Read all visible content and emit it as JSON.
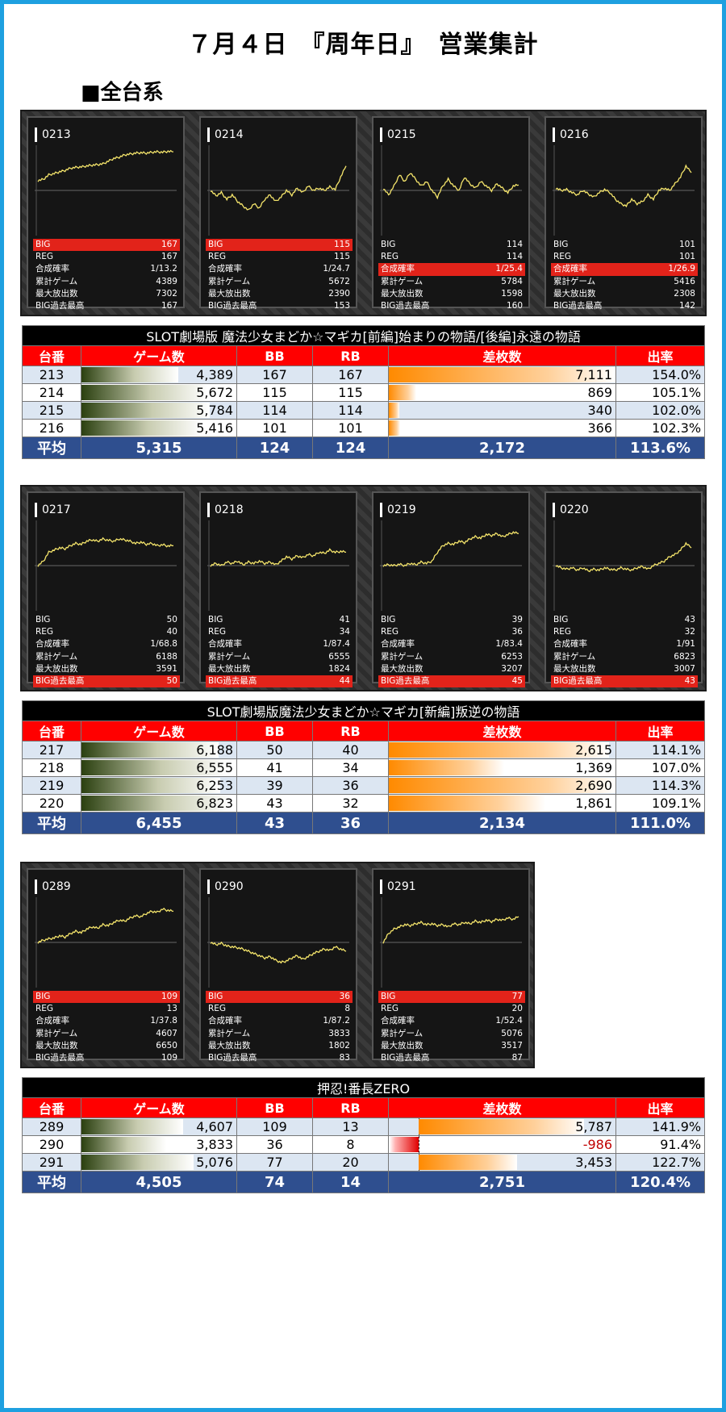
{
  "title": "７月４日　『周年日』　営業集計",
  "section": "■全台系",
  "colors": {
    "frame": "#1ea0e0",
    "header_red": "#ff0000",
    "avg_blue": "#2f4f8f",
    "line_yellow": "#f5e56b"
  },
  "stat_labels": [
    "BIG",
    "REG",
    "合成確率",
    "累計ゲーム",
    "最大放出数",
    "BIG過去最高"
  ],
  "groups": [
    {
      "name": "SLOT劇場版 魔法少女まどか☆マギカ[前編]始まりの物語/[後編]永遠の物語",
      "headers": [
        "台番",
        "ゲーム数",
        "BB",
        "RB",
        "差枚数",
        "出率"
      ],
      "machines": [
        {
          "id": "0213",
          "stats": [
            "167",
            "167",
            "1/13.2",
            "4389",
            "7302",
            "167"
          ],
          "hl": 0,
          "graph": [
            0.22,
            0.25,
            0.35,
            0.38,
            0.42,
            0.45,
            0.5,
            0.52,
            0.53,
            0.55,
            0.57,
            0.58,
            0.6,
            0.66,
            0.72,
            0.75,
            0.8,
            0.82,
            0.84,
            0.85,
            0.84,
            0.86,
            0.87,
            0.86,
            0.88,
            0.87
          ]
        },
        {
          "id": "0214",
          "stats": [
            "115",
            "115",
            "1/24.7",
            "5672",
            "2390",
            "153"
          ],
          "hl": 0,
          "graph": [
            0.0,
            -0.12,
            -0.05,
            -0.2,
            -0.1,
            -0.25,
            -0.35,
            -0.45,
            -0.3,
            -0.4,
            -0.2,
            -0.1,
            -0.25,
            -0.15,
            0.0,
            -0.1,
            0.05,
            -0.05,
            0.1,
            0.0,
            0.05,
            0.0,
            0.08,
            0.02,
            0.3,
            0.55
          ]
        },
        {
          "id": "0215",
          "stats": [
            "114",
            "114",
            "1/25.4",
            "5784",
            "1598",
            "160"
          ],
          "hl": 2,
          "graph": [
            0.05,
            -0.1,
            0.1,
            0.35,
            0.2,
            0.4,
            0.25,
            0.1,
            0.2,
            0.0,
            -0.15,
            0.1,
            0.25,
            0.1,
            0.0,
            0.3,
            0.15,
            0.05,
            0.2,
            0.1,
            0.0,
            0.15,
            0.05,
            -0.05,
            0.1,
            0.12
          ]
        },
        {
          "id": "0216",
          "stats": [
            "101",
            "101",
            "1/26.9",
            "5416",
            "2308",
            "142"
          ],
          "hl": 2,
          "graph": [
            0.05,
            0.0,
            0.02,
            -0.05,
            -0.1,
            0.0,
            -0.08,
            -0.15,
            -0.05,
            0.02,
            -0.05,
            -0.2,
            -0.3,
            -0.35,
            -0.2,
            -0.3,
            -0.25,
            -0.1,
            -0.2,
            0.0,
            0.05,
            0.0,
            0.15,
            0.3,
            0.55,
            0.4
          ]
        }
      ],
      "rows": [
        {
          "no": "213",
          "games": "4,389",
          "bb": "167",
          "rb": "167",
          "diff": "7,111",
          "rate": "154.0%",
          "g": 4389,
          "d": 7111
        },
        {
          "no": "214",
          "games": "5,672",
          "bb": "115",
          "rb": "115",
          "diff": "869",
          "rate": "105.1%",
          "g": 5672,
          "d": 869
        },
        {
          "no": "215",
          "games": "5,784",
          "bb": "114",
          "rb": "114",
          "diff": "340",
          "rate": "102.0%",
          "g": 5784,
          "d": 340
        },
        {
          "no": "216",
          "games": "5,416",
          "bb": "101",
          "rb": "101",
          "diff": "366",
          "rate": "102.3%",
          "g": 5416,
          "d": 366
        }
      ],
      "avg": {
        "label": "平均",
        "games": "5,315",
        "bb": "124",
        "rb": "124",
        "diff": "2,172",
        "rate": "113.6%"
      }
    },
    {
      "name": "SLOT劇場版魔法少女まどか☆マギカ[新編]叛逆の物語",
      "headers": [
        "台番",
        "ゲーム数",
        "BB",
        "RB",
        "差枚数",
        "出率"
      ],
      "machines": [
        {
          "id": "0217",
          "stats": [
            "50",
            "40",
            "1/68.8",
            "6188",
            "3591",
            "50"
          ],
          "hl": 5,
          "graph": [
            0.0,
            0.1,
            0.3,
            0.35,
            0.4,
            0.38,
            0.45,
            0.5,
            0.48,
            0.55,
            0.58,
            0.55,
            0.6,
            0.57,
            0.55,
            0.6,
            0.58,
            0.55,
            0.5,
            0.53,
            0.48,
            0.5,
            0.45,
            0.47,
            0.44,
            0.45
          ]
        },
        {
          "id": "0218",
          "stats": [
            "41",
            "34",
            "1/87.4",
            "6555",
            "1824",
            "44"
          ],
          "hl": 5,
          "graph": [
            0.0,
            0.05,
            0.0,
            0.08,
            0.05,
            0.1,
            0.02,
            0.08,
            0.05,
            0.1,
            0.05,
            0.08,
            0.02,
            0.1,
            0.2,
            0.15,
            0.22,
            0.18,
            0.25,
            0.22,
            0.3,
            0.28,
            0.35,
            0.3,
            0.32,
            0.3
          ]
        },
        {
          "id": "0219",
          "stats": [
            "39",
            "36",
            "1/83.4",
            "6253",
            "3207",
            "45"
          ],
          "hl": 5,
          "graph": [
            0.0,
            0.02,
            0.0,
            0.03,
            0.0,
            0.05,
            0.02,
            0.08,
            0.05,
            0.1,
            0.3,
            0.45,
            0.5,
            0.48,
            0.55,
            0.52,
            0.6,
            0.65,
            0.62,
            0.7,
            0.68,
            0.72,
            0.65,
            0.7,
            0.75,
            0.72
          ]
        },
        {
          "id": "0220",
          "stats": [
            "43",
            "32",
            "1/91",
            "6823",
            "3007",
            "43"
          ],
          "hl": 5,
          "graph": [
            0.0,
            -0.05,
            -0.08,
            -0.05,
            -0.1,
            -0.05,
            -0.12,
            -0.08,
            -0.1,
            -0.05,
            -0.08,
            -0.1,
            -0.05,
            -0.08,
            -0.1,
            -0.05,
            -0.02,
            -0.08,
            0.0,
            0.05,
            0.1,
            0.2,
            0.25,
            0.35,
            0.5,
            0.4
          ]
        }
      ],
      "rows": [
        {
          "no": "217",
          "games": "6,188",
          "bb": "50",
          "rb": "40",
          "diff": "2,615",
          "rate": "114.1%",
          "g": 6188,
          "d": 2615
        },
        {
          "no": "218",
          "games": "6,555",
          "bb": "41",
          "rb": "34",
          "diff": "1,369",
          "rate": "107.0%",
          "g": 6555,
          "d": 1369
        },
        {
          "no": "219",
          "games": "6,253",
          "bb": "39",
          "rb": "36",
          "diff": "2,690",
          "rate": "114.3%",
          "g": 6253,
          "d": 2690
        },
        {
          "no": "220",
          "games": "6,823",
          "bb": "43",
          "rb": "32",
          "diff": "1,861",
          "rate": "109.1%",
          "g": 6823,
          "d": 1861
        }
      ],
      "avg": {
        "label": "平均",
        "games": "6,455",
        "bb": "43",
        "rb": "36",
        "diff": "2,134",
        "rate": "111.0%"
      }
    },
    {
      "name": "押忍!番長ZERO",
      "headers": [
        "台番",
        "ゲーム数",
        "BB",
        "RB",
        "差枚数",
        "出率"
      ],
      "machines": [
        {
          "id": "0289",
          "stats": [
            "109",
            "13",
            "1/37.8",
            "4607",
            "6650",
            "109"
          ],
          "hl": 0,
          "graph": [
            0.0,
            0.05,
            0.08,
            0.1,
            0.15,
            0.12,
            0.2,
            0.25,
            0.22,
            0.3,
            0.35,
            0.32,
            0.4,
            0.38,
            0.45,
            0.5,
            0.48,
            0.55,
            0.6,
            0.58,
            0.65,
            0.7,
            0.68,
            0.75,
            0.72,
            0.7
          ]
        },
        {
          "id": "0290",
          "stats": [
            "36",
            "8",
            "1/87.2",
            "3833",
            "1802",
            "83"
          ],
          "hl": 0,
          "graph": [
            0.0,
            -0.05,
            -0.02,
            -0.08,
            -0.1,
            -0.12,
            -0.15,
            -0.2,
            -0.25,
            -0.3,
            -0.35,
            -0.32,
            -0.4,
            -0.45,
            -0.42,
            -0.35,
            -0.3,
            -0.38,
            -0.32,
            -0.25,
            -0.2,
            -0.15,
            -0.18,
            -0.1,
            -0.15,
            -0.2
          ]
        },
        {
          "id": "0291",
          "stats": [
            "77",
            "20",
            "1/52.4",
            "5076",
            "3517",
            "87"
          ],
          "hl": 0,
          "graph": [
            0.0,
            0.2,
            0.3,
            0.35,
            0.4,
            0.38,
            0.42,
            0.45,
            0.4,
            0.42,
            0.38,
            0.4,
            0.35,
            0.42,
            0.4,
            0.45,
            0.42,
            0.48,
            0.45,
            0.5,
            0.47,
            0.52,
            0.5,
            0.55,
            0.52,
            0.58
          ]
        }
      ],
      "rows": [
        {
          "no": "289",
          "games": "4,607",
          "bb": "109",
          "rb": "13",
          "diff": "5,787",
          "rate": "141.9%",
          "g": 4607,
          "d": 5787
        },
        {
          "no": "290",
          "games": "3,833",
          "bb": "36",
          "rb": "8",
          "diff": "-986",
          "rate": "91.4%",
          "g": 3833,
          "d": -986
        },
        {
          "no": "291",
          "games": "5,076",
          "bb": "77",
          "rb": "20",
          "diff": "3,453",
          "rate": "122.7%",
          "g": 5076,
          "d": 3453
        }
      ],
      "avg": {
        "label": "平均",
        "games": "4,505",
        "bb": "74",
        "rb": "14",
        "diff": "2,751",
        "rate": "120.4%"
      }
    }
  ]
}
